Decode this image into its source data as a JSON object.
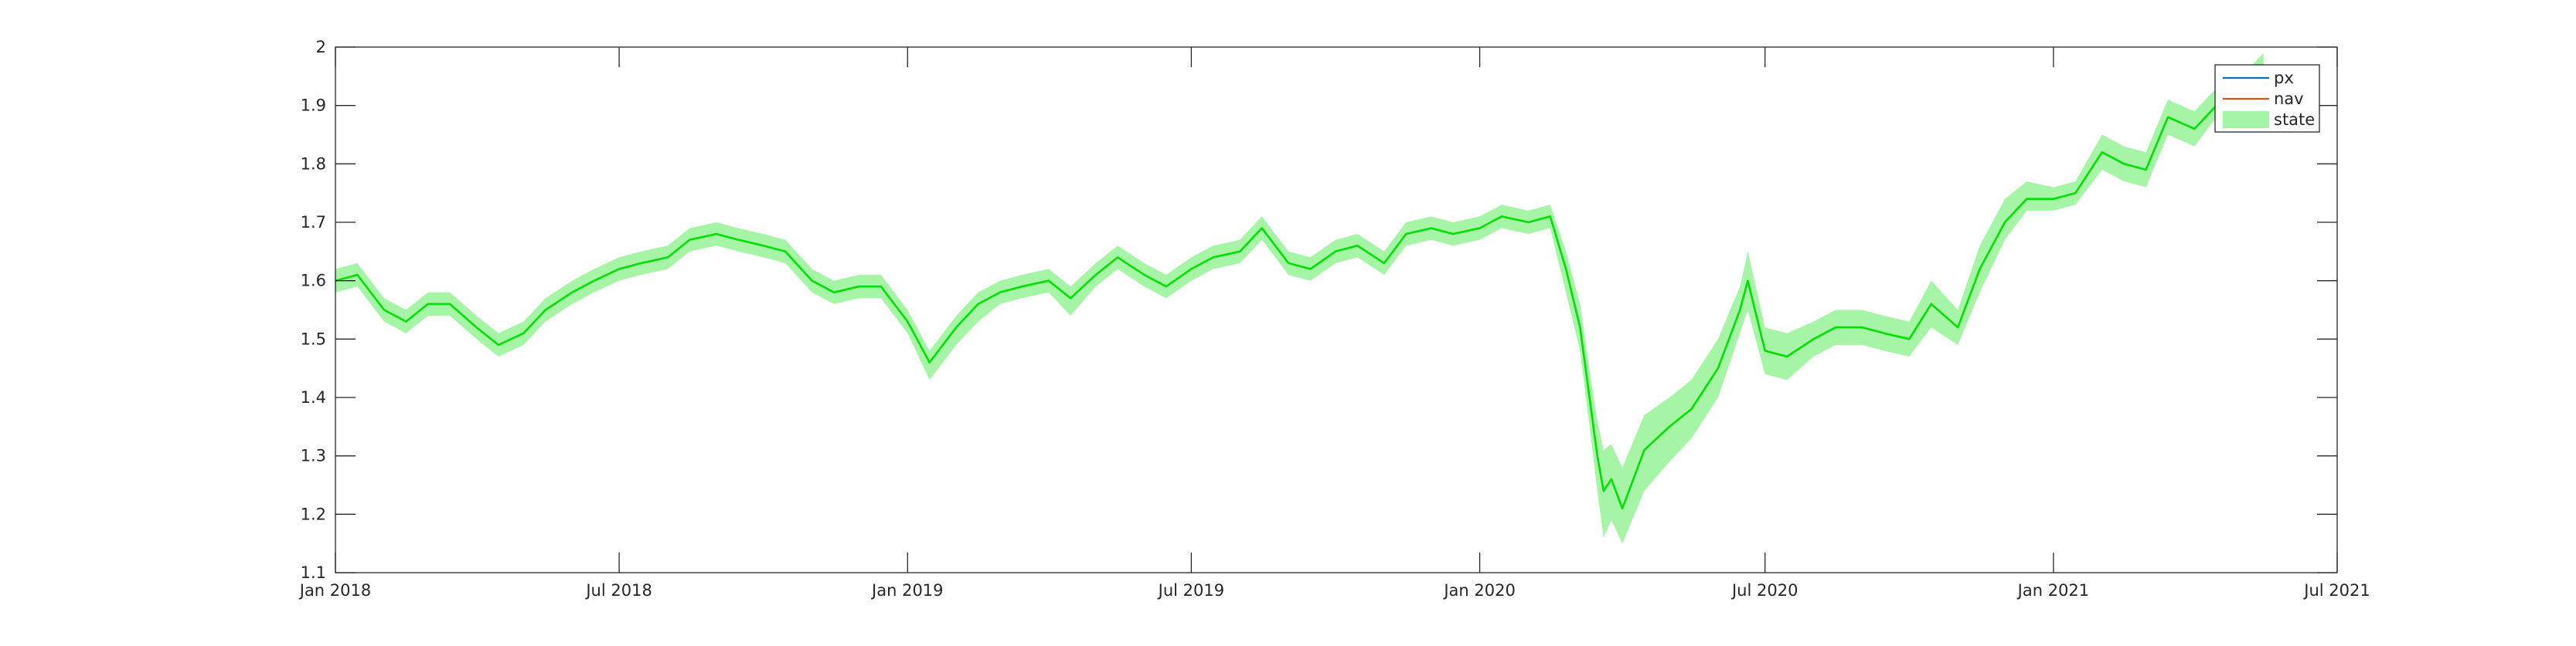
{
  "chart_data": {
    "type": "line",
    "title": "",
    "xlabel": "",
    "ylabel": "",
    "x_domain": [
      "2018-01-01",
      "2021-07-01"
    ],
    "ylim": [
      1.1,
      2.0
    ],
    "y_ticks": [
      1.1,
      1.2,
      1.3,
      1.4,
      1.5,
      1.6,
      1.7,
      1.8,
      1.9,
      2.0
    ],
    "y_tick_labels": [
      "1.1",
      "1.2",
      "1.3",
      "1.4",
      "1.5",
      "1.6",
      "1.7",
      "1.8",
      "1.9",
      "2"
    ],
    "x_ticks": [
      "2018-01-01",
      "2018-07-01",
      "2019-01-01",
      "2019-07-01",
      "2020-01-01",
      "2020-07-01",
      "2021-01-01",
      "2021-07-01"
    ],
    "x_tick_labels": [
      "Jan 2018",
      "Jul 2018",
      "Jan 2019",
      "Jul 2019",
      "Jan 2020",
      "Jul 2020",
      "Jan 2021",
      "Jul 2021"
    ],
    "grid": false,
    "legend_position": "top-right",
    "colors": {
      "px": "#0072BD",
      "nav": "#D95319",
      "state_line": "#00E000",
      "state_band": "#A6F5A6",
      "axes": "#262626"
    },
    "x": [
      "2018-01-01",
      "2018-01-15",
      "2018-02-01",
      "2018-02-15",
      "2018-03-01",
      "2018-03-15",
      "2018-04-01",
      "2018-04-15",
      "2018-05-01",
      "2018-05-15",
      "2018-06-01",
      "2018-06-15",
      "2018-07-01",
      "2018-07-15",
      "2018-08-01",
      "2018-08-15",
      "2018-09-01",
      "2018-09-15",
      "2018-10-01",
      "2018-10-15",
      "2018-11-01",
      "2018-11-15",
      "2018-12-01",
      "2018-12-15",
      "2019-01-01",
      "2019-01-15",
      "2019-02-01",
      "2019-02-15",
      "2019-03-01",
      "2019-03-15",
      "2019-04-01",
      "2019-04-15",
      "2019-05-01",
      "2019-05-15",
      "2019-06-01",
      "2019-06-15",
      "2019-07-01",
      "2019-07-15",
      "2019-08-01",
      "2019-08-15",
      "2019-09-01",
      "2019-09-15",
      "2019-10-01",
      "2019-10-15",
      "2019-11-01",
      "2019-11-15",
      "2019-12-01",
      "2019-12-15",
      "2020-01-01",
      "2020-01-15",
      "2020-02-01",
      "2020-02-15",
      "2020-02-25",
      "2020-03-05",
      "2020-03-12",
      "2020-03-16",
      "2020-03-20",
      "2020-03-25",
      "2020-04-01",
      "2020-04-15",
      "2020-05-01",
      "2020-05-15",
      "2020-06-01",
      "2020-06-15",
      "2020-06-20",
      "2020-07-01",
      "2020-07-15",
      "2020-08-01",
      "2020-08-15",
      "2020-09-01",
      "2020-09-15",
      "2020-10-01",
      "2020-10-15",
      "2020-11-01",
      "2020-11-15",
      "2020-12-01",
      "2020-12-15",
      "2021-01-01",
      "2021-01-15",
      "2021-02-01",
      "2021-02-15",
      "2021-03-01",
      "2021-03-15",
      "2021-04-01",
      "2021-04-15",
      "2021-05-01",
      "2021-05-15"
    ],
    "series": [
      {
        "name": "px",
        "values": [
          1.6,
          1.61,
          1.55,
          1.53,
          1.56,
          1.56,
          1.52,
          1.49,
          1.51,
          1.55,
          1.58,
          1.6,
          1.62,
          1.63,
          1.64,
          1.67,
          1.68,
          1.67,
          1.66,
          1.65,
          1.6,
          1.58,
          1.59,
          1.59,
          1.53,
          1.46,
          1.52,
          1.56,
          1.58,
          1.59,
          1.6,
          1.57,
          1.61,
          1.64,
          1.61,
          1.59,
          1.62,
          1.64,
          1.65,
          1.69,
          1.63,
          1.62,
          1.65,
          1.66,
          1.63,
          1.68,
          1.69,
          1.68,
          1.69,
          1.71,
          1.7,
          1.71,
          1.62,
          1.52,
          1.38,
          1.3,
          1.24,
          1.26,
          1.21,
          1.31,
          1.35,
          1.38,
          1.45,
          1.55,
          1.6,
          1.48,
          1.47,
          1.5,
          1.52,
          1.52,
          1.51,
          1.5,
          1.56,
          1.52,
          1.62,
          1.7,
          1.74,
          1.74,
          1.75,
          1.82,
          1.8,
          1.79,
          1.88,
          1.86,
          1.9,
          1.93,
          1.96
        ]
      },
      {
        "name": "nav",
        "values": [
          1.6,
          1.61,
          1.55,
          1.53,
          1.56,
          1.56,
          1.52,
          1.49,
          1.51,
          1.55,
          1.58,
          1.6,
          1.62,
          1.63,
          1.64,
          1.67,
          1.68,
          1.67,
          1.66,
          1.65,
          1.6,
          1.58,
          1.59,
          1.59,
          1.53,
          1.46,
          1.52,
          1.56,
          1.58,
          1.59,
          1.6,
          1.57,
          1.61,
          1.64,
          1.61,
          1.59,
          1.62,
          1.64,
          1.65,
          1.69,
          1.63,
          1.62,
          1.65,
          1.66,
          1.63,
          1.68,
          1.69,
          1.68,
          1.69,
          1.71,
          1.7,
          1.71,
          1.62,
          1.52,
          1.38,
          1.3,
          1.24,
          1.26,
          1.21,
          1.31,
          1.35,
          1.38,
          1.45,
          1.55,
          1.6,
          1.48,
          1.47,
          1.5,
          1.52,
          1.52,
          1.51,
          1.5,
          1.56,
          1.52,
          1.62,
          1.7,
          1.74,
          1.74,
          1.75,
          1.82,
          1.8,
          1.79,
          1.88,
          1.86,
          1.9,
          1.93,
          1.96
        ]
      },
      {
        "name": "state",
        "values": [
          1.6,
          1.61,
          1.55,
          1.53,
          1.56,
          1.56,
          1.52,
          1.49,
          1.51,
          1.55,
          1.58,
          1.6,
          1.62,
          1.63,
          1.64,
          1.67,
          1.68,
          1.67,
          1.66,
          1.65,
          1.6,
          1.58,
          1.59,
          1.59,
          1.53,
          1.46,
          1.52,
          1.56,
          1.58,
          1.59,
          1.6,
          1.57,
          1.61,
          1.64,
          1.61,
          1.59,
          1.62,
          1.64,
          1.65,
          1.69,
          1.63,
          1.62,
          1.65,
          1.66,
          1.63,
          1.68,
          1.69,
          1.68,
          1.69,
          1.71,
          1.7,
          1.71,
          1.62,
          1.52,
          1.38,
          1.3,
          1.24,
          1.26,
          1.21,
          1.31,
          1.35,
          1.38,
          1.45,
          1.55,
          1.6,
          1.48,
          1.47,
          1.5,
          1.52,
          1.52,
          1.51,
          1.5,
          1.56,
          1.52,
          1.62,
          1.7,
          1.74,
          1.74,
          1.75,
          1.82,
          1.8,
          1.79,
          1.88,
          1.86,
          1.9,
          1.93,
          1.96
        ],
        "band_lower": [
          1.58,
          1.59,
          1.53,
          1.51,
          1.54,
          1.54,
          1.5,
          1.47,
          1.49,
          1.53,
          1.56,
          1.58,
          1.6,
          1.61,
          1.62,
          1.65,
          1.66,
          1.65,
          1.64,
          1.63,
          1.58,
          1.56,
          1.57,
          1.57,
          1.51,
          1.43,
          1.49,
          1.53,
          1.56,
          1.57,
          1.58,
          1.54,
          1.59,
          1.62,
          1.59,
          1.57,
          1.6,
          1.62,
          1.63,
          1.67,
          1.61,
          1.6,
          1.63,
          1.64,
          1.61,
          1.66,
          1.67,
          1.66,
          1.67,
          1.69,
          1.68,
          1.69,
          1.58,
          1.48,
          1.33,
          1.24,
          1.16,
          1.19,
          1.15,
          1.24,
          1.29,
          1.33,
          1.4,
          1.51,
          1.55,
          1.44,
          1.43,
          1.47,
          1.49,
          1.49,
          1.48,
          1.47,
          1.52,
          1.49,
          1.58,
          1.67,
          1.72,
          1.72,
          1.73,
          1.79,
          1.77,
          1.76,
          1.85,
          1.83,
          1.88,
          1.91,
          1.94
        ],
        "band_upper": [
          1.62,
          1.63,
          1.57,
          1.55,
          1.58,
          1.58,
          1.54,
          1.51,
          1.53,
          1.57,
          1.6,
          1.62,
          1.64,
          1.65,
          1.66,
          1.69,
          1.7,
          1.69,
          1.68,
          1.67,
          1.62,
          1.6,
          1.61,
          1.61,
          1.55,
          1.48,
          1.54,
          1.58,
          1.6,
          1.61,
          1.62,
          1.59,
          1.63,
          1.66,
          1.63,
          1.61,
          1.64,
          1.66,
          1.67,
          1.71,
          1.65,
          1.64,
          1.67,
          1.68,
          1.65,
          1.7,
          1.71,
          1.7,
          1.71,
          1.73,
          1.72,
          1.73,
          1.65,
          1.56,
          1.43,
          1.36,
          1.31,
          1.32,
          1.28,
          1.37,
          1.4,
          1.43,
          1.5,
          1.59,
          1.65,
          1.52,
          1.51,
          1.53,
          1.55,
          1.55,
          1.54,
          1.53,
          1.6,
          1.55,
          1.66,
          1.74,
          1.77,
          1.76,
          1.77,
          1.85,
          1.83,
          1.82,
          1.91,
          1.89,
          1.93,
          1.95,
          1.99
        ]
      }
    ],
    "legend": [
      {
        "label": "px",
        "symbol": "line",
        "color": "#0072BD"
      },
      {
        "label": "nav",
        "symbol": "line",
        "color": "#D95319"
      },
      {
        "label": "state",
        "symbol": "patch",
        "color": "#A6F5A6"
      }
    ]
  }
}
